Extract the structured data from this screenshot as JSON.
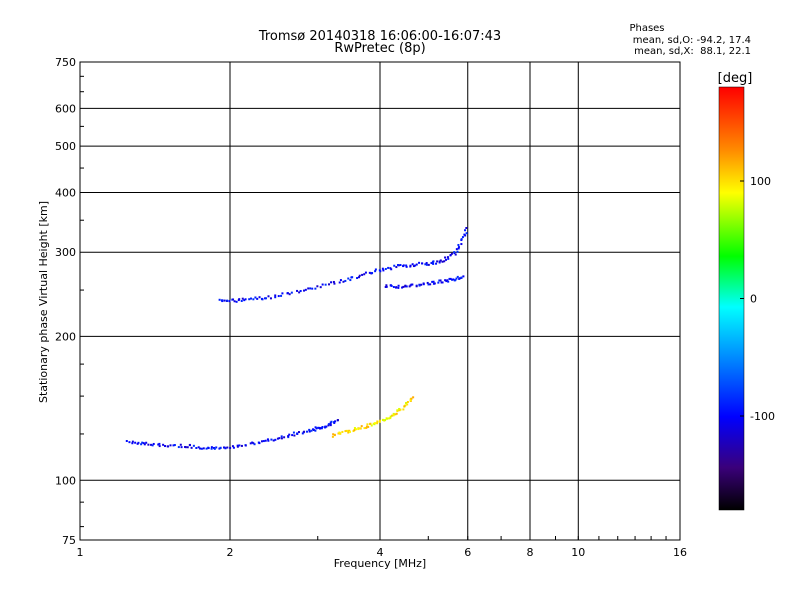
{
  "chart_data": {
    "type": "scatter",
    "title": "Tromsø 20140318 16:06:00-16:07:43",
    "subtitle": "RwPretec (8p)",
    "stats": {
      "heading": "Phases",
      "line1": "mean, sd,O: -94.2, 17.4",
      "line2": "mean, sd,X:  88.1, 22.1"
    },
    "xlabel": "Frequency [MHz]",
    "ylabel": "Stationary phase Virtual Height [km]",
    "x_scale": "log",
    "y_scale": "log",
    "xlim": [
      1,
      16
    ],
    "ylim": [
      75,
      750
    ],
    "x_ticks": [
      1,
      2,
      4,
      6,
      8,
      10,
      16
    ],
    "x_tick_labels": [
      "1",
      "2",
      "4",
      "6",
      "8",
      "10",
      "16"
    ],
    "y_ticks": [
      75,
      100,
      200,
      300,
      400,
      500,
      600,
      750
    ],
    "y_tick_labels": [
      "75",
      "100",
      "200",
      "300",
      "400",
      "500",
      "600",
      "750"
    ],
    "grid": true,
    "colorbar": {
      "label": "[deg]",
      "range": [
        -180,
        180
      ],
      "ticks": [
        100,
        0,
        -100
      ],
      "tick_labels": [
        "100",
        "0",
        "-100"
      ]
    },
    "traces": [
      {
        "name_hint": "E-region O trace",
        "phase": -100,
        "x": [
          1.25,
          1.4,
          1.6,
          1.8,
          2.0,
          2.3,
          2.6,
          2.9,
          3.1,
          3.3
        ],
        "y": [
          120,
          119,
          118,
          117,
          117,
          120,
          124,
          127,
          130,
          133
        ]
      },
      {
        "name_hint": "F-region O trace",
        "phase": -100,
        "x": [
          1.9,
          2.1,
          2.4,
          2.8,
          3.3,
          3.8,
          4.3,
          4.8,
          5.3,
          5.7,
          6.0
        ],
        "y": [
          237,
          238,
          241,
          250,
          260,
          272,
          280,
          283,
          286,
          300,
          340
        ]
      },
      {
        "name_hint": "F-region upper trace",
        "phase": -100,
        "x": [
          4.1,
          4.5,
          5.0,
          5.5,
          5.9
        ],
        "y": [
          255,
          254,
          258,
          262,
          267
        ]
      },
      {
        "name_hint": "E-region X trace",
        "phase": 100,
        "x": [
          3.2,
          3.5,
          3.8,
          4.1,
          4.4,
          4.7
        ],
        "y": [
          124,
          127,
          130,
          134,
          140,
          150
        ]
      }
    ]
  }
}
